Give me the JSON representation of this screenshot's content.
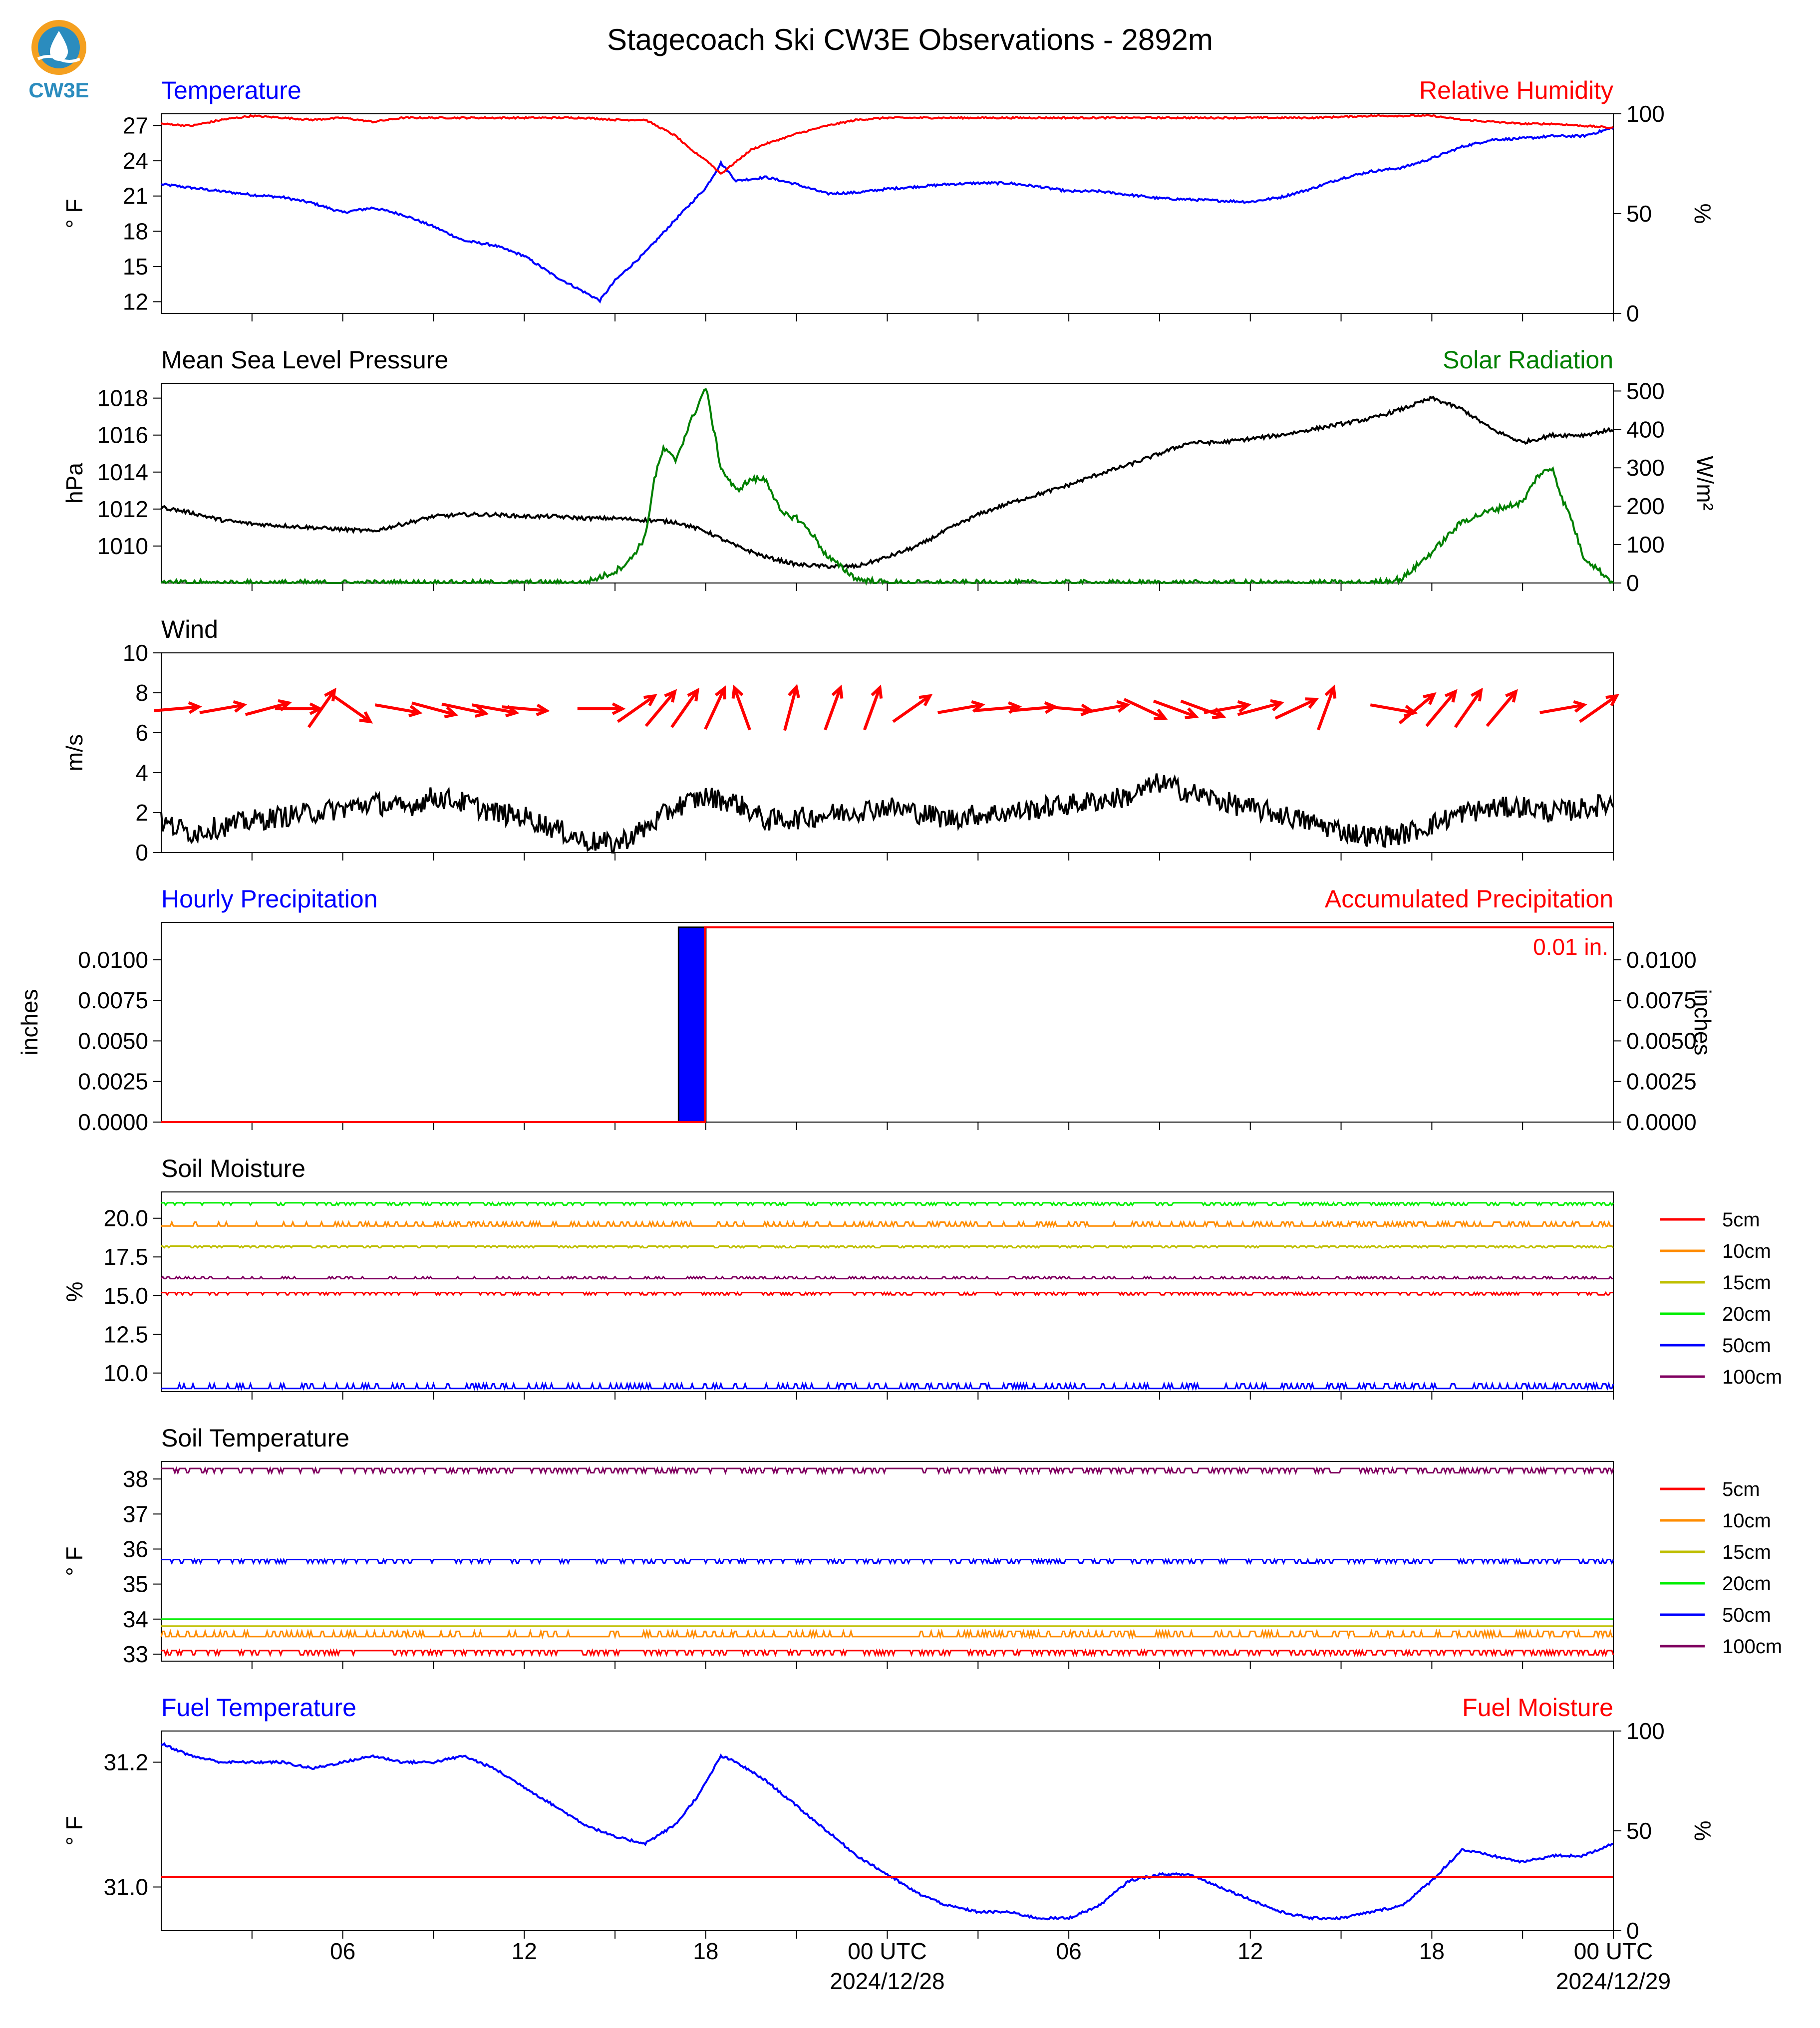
{
  "title": "Stagecoach Ski CW3E Observations - 2892m",
  "logo": {
    "text": "CW3E",
    "color": "#2b8cbe",
    "accent": "#f4a020"
  },
  "x_axis": {
    "ticks": [
      "06",
      "12",
      "18",
      "00 UTC",
      "06",
      "12",
      "18",
      "00 UTC"
    ],
    "dates": [
      "2024/12/28",
      "2024/12/29"
    ]
  },
  "legend_depths": [
    "5cm",
    "10cm",
    "15cm",
    "20cm",
    "50cm",
    "100cm"
  ],
  "colors": {
    "5cm": "#ff0000",
    "10cm": "#ff8c00",
    "15cm": "#bfbf00",
    "20cm": "#00ee00",
    "50cm": "#0000ff",
    "100cm": "#800060",
    "blue": "#0000ff",
    "red": "#ff0000",
    "green": "#008000",
    "black": "#000000"
  },
  "chart_data": [
    {
      "id": "temp_rh",
      "type": "line",
      "title_left": "Temperature",
      "title_right": "Relative Humidity",
      "ylabel_left": "° F",
      "ylabel_right": "%",
      "yticks_left": [
        12,
        15,
        18,
        21,
        24,
        27
      ],
      "ylim_left": [
        11,
        28
      ],
      "yticks_right": [
        0,
        50,
        100
      ],
      "ylim_right": [
        0,
        100
      ],
      "series": [
        {
          "name": "Temperature",
          "axis": "left",
          "color": "blue",
          "x": [
            0,
            1,
            2,
            3,
            4,
            5,
            6,
            7,
            8,
            9,
            10,
            11,
            12,
            13,
            14,
            14.5,
            15,
            16,
            17,
            18,
            18.5,
            19,
            20,
            21,
            22,
            23,
            24,
            25,
            26,
            27,
            28,
            29,
            30,
            31,
            32,
            33,
            34,
            35,
            36,
            37,
            38,
            39,
            40,
            41,
            42,
            43,
            44,
            45,
            46,
            47,
            48
          ],
          "y": [
            22,
            21.7,
            21.4,
            21.1,
            20.9,
            20.4,
            19.6,
            20,
            19.4,
            18.4,
            17.2,
            16.8,
            15.9,
            14.2,
            12.8,
            12.1,
            13.8,
            16.2,
            19,
            21.7,
            23.8,
            22.3,
            22.6,
            22,
            21.2,
            21.3,
            21.6,
            21.8,
            22,
            22.1,
            22.1,
            21.8,
            21.4,
            21.4,
            21.1,
            20.8,
            20.7,
            20.6,
            20.5,
            20.9,
            21.6,
            22.5,
            23.1,
            23.4,
            24.2,
            25.2,
            25.8,
            25.9,
            26.1,
            26.1,
            26.8
          ]
        },
        {
          "name": "Relative Humidity",
          "axis": "right",
          "color": "red",
          "x": [
            0,
            1,
            2,
            3,
            4,
            5,
            6,
            7,
            8,
            9,
            10,
            12,
            14,
            15,
            16,
            17,
            17.5,
            18,
            18.5,
            19,
            19.5,
            20,
            21,
            22,
            23,
            24,
            26,
            28,
            30,
            32,
            34,
            36,
            38,
            40,
            42,
            43,
            44,
            45,
            46,
            47,
            48
          ],
          "y": [
            95,
            94,
            97,
            99,
            98,
            97,
            98,
            96,
            98,
            98,
            98,
            98,
            98,
            97,
            97,
            89,
            82,
            77,
            70,
            76,
            82,
            85,
            90,
            94,
            97,
            98,
            98,
            98,
            98,
            98,
            98,
            98,
            98,
            99,
            99,
            97,
            96,
            95,
            95,
            94,
            93
          ]
        }
      ]
    },
    {
      "id": "pressure_solar",
      "type": "line",
      "title_left": "Mean Sea Level Pressure",
      "title_right": "Solar Radiation",
      "ylabel_left": "hPa",
      "ylabel_right": "W/m²",
      "yticks_left": [
        1010,
        1012,
        1014,
        1016,
        1018
      ],
      "ylim_left": [
        1008,
        1018.8
      ],
      "yticks_right": [
        0,
        100,
        200,
        300,
        400,
        500
      ],
      "ylim_right": [
        0,
        520
      ],
      "series": [
        {
          "name": "Mean Sea Level Pressure",
          "axis": "left",
          "color": "black",
          "x": [
            0,
            1,
            2,
            3,
            4,
            5,
            6,
            7,
            8,
            9,
            10,
            11,
            12,
            13,
            14,
            15,
            16,
            17,
            18,
            19,
            20,
            21,
            22,
            23,
            24,
            25,
            26,
            27,
            28,
            29,
            30,
            31,
            32,
            33,
            34,
            35,
            36,
            37,
            38,
            39,
            40,
            41,
            42,
            43,
            44,
            45,
            46,
            47,
            48
          ],
          "y": [
            1012.1,
            1011.8,
            1011.4,
            1011.2,
            1011.1,
            1011,
            1010.9,
            1010.8,
            1011.2,
            1011.6,
            1011.7,
            1011.7,
            1011.6,
            1011.6,
            1011.5,
            1011.5,
            1011.4,
            1011.3,
            1010.8,
            1010,
            1009.4,
            1009,
            1008.9,
            1008.9,
            1009.4,
            1010,
            1010.9,
            1011.7,
            1012.3,
            1012.8,
            1013.3,
            1013.9,
            1014.4,
            1015,
            1015.6,
            1015.6,
            1015.8,
            1016,
            1016.3,
            1016.6,
            1016.9,
            1017.4,
            1018,
            1017.4,
            1016.3,
            1015.6,
            1016,
            1016,
            1016.3
          ]
        },
        {
          "name": "Solar Radiation",
          "axis": "right",
          "color": "green",
          "x": [
            0,
            13,
            14,
            15,
            15.5,
            16,
            16.3,
            16.6,
            17,
            17.5,
            18,
            18.5,
            19,
            19.5,
            20,
            20.5,
            21,
            21.5,
            22,
            23,
            24,
            40,
            41,
            42,
            43,
            44,
            45,
            45.5,
            46,
            46.3,
            46.6,
            47,
            48
          ],
          "y": [
            0,
            0,
            0,
            30,
            60,
            120,
            270,
            350,
            320,
            420,
            510,
            300,
            240,
            270,
            270,
            180,
            170,
            130,
            70,
            10,
            0,
            0,
            10,
            80,
            160,
            190,
            210,
            280,
            300,
            220,
            170,
            70,
            0
          ]
        }
      ]
    },
    {
      "id": "wind",
      "type": "line",
      "title_left": "Wind",
      "ylabel_left": "m/s",
      "yticks_left": [
        0,
        2,
        4,
        6,
        8,
        10
      ],
      "ylim_left": [
        0,
        10
      ],
      "series": [
        {
          "name": "Wind",
          "axis": "left",
          "color": "black",
          "x": [
            0,
            1,
            2,
            3,
            4,
            5,
            6,
            7,
            8,
            9,
            10,
            11,
            12,
            13,
            14,
            15,
            16,
            17,
            18,
            19,
            20,
            21,
            22,
            23,
            24,
            25,
            26,
            27,
            28,
            29,
            30,
            31,
            32,
            33,
            34,
            35,
            36,
            37,
            38,
            39,
            40,
            41,
            42,
            43,
            44,
            45,
            46,
            47,
            48
          ],
          "y": [
            1.5,
            1,
            1.3,
            1.6,
            1.8,
            2,
            2.2,
            2.5,
            2.2,
            2.8,
            2.5,
            2,
            1.8,
            1.2,
            0.6,
            0.4,
            1.2,
            2.3,
            2.8,
            2.5,
            1.6,
            1.7,
            1.9,
            2.1,
            2.3,
            2,
            1.7,
            1.9,
            2,
            2.2,
            2.4,
            2.6,
            2.8,
            3.5,
            3,
            2.6,
            2.2,
            1.9,
            1.5,
            1.1,
            0.8,
            0.9,
            1.4,
            2,
            2.2,
            2.3,
            2,
            2.2,
            2.5
          ]
        }
      ],
      "vectors": [
        {
          "x": 0.5,
          "dir": 85
        },
        {
          "x": 2,
          "dir": 80
        },
        {
          "x": 3.5,
          "dir": 75
        },
        {
          "x": 4.5,
          "dir": 90
        },
        {
          "x": 5.3,
          "dir": 35
        },
        {
          "x": 6.3,
          "dir": 125
        },
        {
          "x": 7.8,
          "dir": 100
        },
        {
          "x": 9,
          "dir": 105
        },
        {
          "x": 10,
          "dir": 102
        },
        {
          "x": 11,
          "dir": 100
        },
        {
          "x": 12,
          "dir": 95
        },
        {
          "x": 14.5,
          "dir": 90
        },
        {
          "x": 15.7,
          "dir": 55
        },
        {
          "x": 16.5,
          "dir": 40
        },
        {
          "x": 17.3,
          "dir": 35
        },
        {
          "x": 18.3,
          "dir": 25
        },
        {
          "x": 19.2,
          "dir": 340
        },
        {
          "x": 20.8,
          "dir": 15
        },
        {
          "x": 22.2,
          "dir": 20
        },
        {
          "x": 23.5,
          "dir": 20
        },
        {
          "x": 24.8,
          "dir": 55
        },
        {
          "x": 26.4,
          "dir": 80
        },
        {
          "x": 27.6,
          "dir": 85
        },
        {
          "x": 28.8,
          "dir": 85
        },
        {
          "x": 30,
          "dir": 95
        },
        {
          "x": 31.2,
          "dir": 80
        },
        {
          "x": 32.5,
          "dir": 115
        },
        {
          "x": 33.5,
          "dir": 110
        },
        {
          "x": 34.4,
          "dir": 110
        },
        {
          "x": 35.2,
          "dir": 80
        },
        {
          "x": 36.3,
          "dir": 75
        },
        {
          "x": 37.5,
          "dir": 65
        },
        {
          "x": 38.5,
          "dir": 20
        },
        {
          "x": 40.7,
          "dir": 100
        },
        {
          "x": 41.5,
          "dir": 50
        },
        {
          "x": 42.3,
          "dir": 40
        },
        {
          "x": 43.2,
          "dir": 35
        },
        {
          "x": 44.3,
          "dir": 40
        },
        {
          "x": 46.3,
          "dir": 80
        },
        {
          "x": 47.5,
          "dir": 55
        }
      ]
    },
    {
      "id": "precip",
      "type": "bar",
      "title_left": "Hourly Precipitation",
      "title_right": "Accumulated Precipitation",
      "ylabel_left": "inches",
      "ylabel_right": "inches",
      "yticks_left": [
        "0.0000",
        "0.0025",
        "0.0050",
        "0.0075",
        "0.0100"
      ],
      "yticks_right": [
        "0.0000",
        "0.0025",
        "0.0050",
        "0.0075",
        "0.0100"
      ],
      "ylim_left": [
        0,
        0.0123
      ],
      "bars": [
        {
          "x0": 17.1,
          "x1": 18.0,
          "value": 0.012
        }
      ],
      "accum_step_x": 18.1,
      "accum_value": 0.012,
      "annotation": "0.01 in."
    },
    {
      "id": "soil_moisture",
      "type": "line",
      "title_left": "Soil Moisture",
      "ylabel_left": "%",
      "yticks_left": [
        "10.0",
        "12.5",
        "15.0",
        "17.5",
        "20.0"
      ],
      "ylim_left": [
        8.8,
        21.7
      ],
      "series": [
        {
          "name": "5cm",
          "color": "5cm",
          "base": 15.2,
          "noise": 0.15,
          "dir": -1
        },
        {
          "name": "10cm",
          "color": "10cm",
          "base": 19.5,
          "noise": 0.25,
          "dir": 1
        },
        {
          "name": "15cm",
          "color": "15cm",
          "base": 18.2,
          "noise": 0.1,
          "dir": -1
        },
        {
          "name": "20cm",
          "color": "20cm",
          "base": 21.0,
          "noise": 0.15,
          "dir": -1
        },
        {
          "name": "50cm",
          "color": "50cm",
          "base": 9.0,
          "noise": 0.3,
          "dir": 1
        },
        {
          "name": "100cm",
          "color": "100cm",
          "base": 16.1,
          "noise": 0.12,
          "dir": 1
        }
      ]
    },
    {
      "id": "soil_temperature",
      "type": "line",
      "title_left": "Soil Temperature",
      "ylabel_left": "° F",
      "yticks_left": [
        33,
        34,
        35,
        36,
        37,
        38
      ],
      "ylim_left": [
        32.8,
        38.5
      ],
      "series": [
        {
          "name": "5cm",
          "color": "5cm",
          "base": 33.1,
          "noise": 0.12,
          "dir": -1
        },
        {
          "name": "10cm",
          "color": "10cm",
          "base": 33.5,
          "noise": 0.15,
          "dir": 1
        },
        {
          "name": "15cm",
          "color": "15cm",
          "base": 33.8,
          "noise": 0,
          "dir": 1
        },
        {
          "name": "20cm",
          "color": "20cm",
          "base": 34.0,
          "noise": 0,
          "dir": 1
        },
        {
          "name": "50cm",
          "color": "50cm",
          "base": 35.7,
          "noise": 0.1,
          "dir": -1
        },
        {
          "name": "100cm",
          "color": "100cm",
          "base": 38.3,
          "noise": 0.12,
          "dir": -1
        }
      ]
    },
    {
      "id": "fuel",
      "type": "line",
      "title_left": "Fuel Temperature",
      "title_right": "Fuel Moisture",
      "ylabel_left": "° F",
      "ylabel_right": "%",
      "yticks_left": [
        "31.0",
        "31.2"
      ],
      "ylim_left": [
        30.93,
        31.25
      ],
      "yticks_right": [
        0,
        50,
        100
      ],
      "ylim_right": [
        0,
        100
      ],
      "series": [
        {
          "name": "Fuel Temperature",
          "axis": "left",
          "color": "blue",
          "x": [
            0,
            1,
            2,
            3,
            4,
            5,
            6,
            7,
            8,
            9,
            10,
            11,
            12,
            13,
            14,
            15,
            16,
            17,
            17.8,
            18.5,
            19,
            20,
            21,
            22,
            23,
            24,
            25,
            26,
            27,
            28,
            29,
            30,
            31,
            32,
            33,
            34,
            35,
            36,
            37,
            38,
            39,
            40,
            41,
            42,
            43,
            44,
            45,
            46,
            47,
            48
          ],
          "y": [
            31.23,
            31.21,
            31.2,
            31.2,
            31.2,
            31.19,
            31.2,
            31.21,
            31.2,
            31.2,
            31.21,
            31.19,
            31.16,
            31.13,
            31.1,
            31.08,
            31.07,
            31.1,
            31.15,
            31.21,
            31.2,
            31.17,
            31.13,
            31.09,
            31.05,
            31.02,
            30.99,
            30.97,
            30.96,
            30.96,
            30.95,
            30.95,
            30.97,
            31.01,
            31.02,
            31.02,
            31,
            30.98,
            30.96,
            30.95,
            30.95,
            30.96,
            30.97,
            31.01,
            31.06,
            31.05,
            31.04,
            31.05,
            31.05,
            31.07
          ]
        },
        {
          "name": "Fuel Moisture",
          "axis": "right",
          "color": "red",
          "x": [
            0,
            48
          ],
          "y": [
            27,
            27
          ]
        }
      ]
    }
  ]
}
